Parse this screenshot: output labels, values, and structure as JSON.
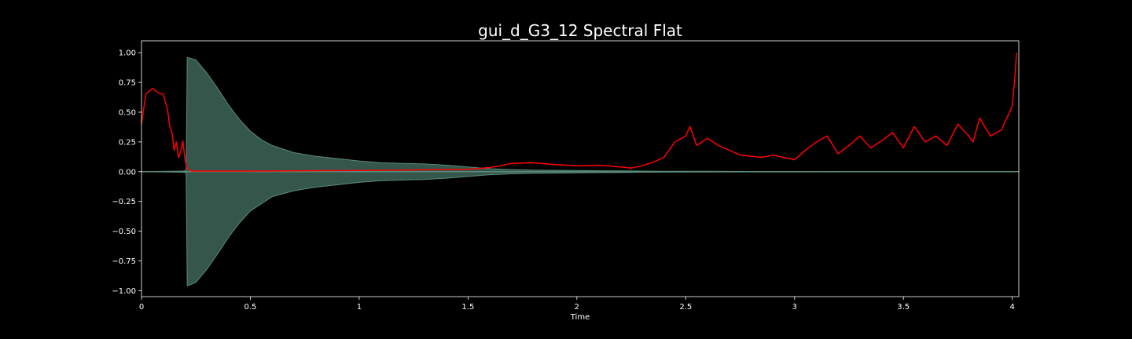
{
  "chart_data": {
    "type": "line",
    "title": "gui_d_G3_12 Spectral Flat",
    "xlabel": "Time",
    "ylabel": "",
    "xlim": [
      0,
      4.03
    ],
    "ylim": [
      -1.05,
      1.1
    ],
    "x_ticks": [
      0,
      0.5,
      1,
      1.5,
      2,
      2.5,
      3,
      3.5,
      4
    ],
    "x_tick_labels": [
      "0",
      "0.5",
      "1",
      "1.5",
      "2",
      "2.5",
      "3",
      "3.5",
      "4"
    ],
    "y_ticks": [
      1.0,
      0.75,
      0.5,
      0.25,
      0.0,
      -0.25,
      -0.5,
      -0.75,
      -1.0
    ],
    "y_tick_labels": [
      "1.00",
      "0.75",
      "0.50",
      "0.25",
      "0.00",
      "−0.25",
      "−0.50",
      "−0.75",
      "−1.00"
    ],
    "grid": false,
    "series": [
      {
        "kind": "waveform-envelope",
        "color": "#5a8a7a",
        "fill_color": "#35564b",
        "x": [
          0,
          0.19,
          0.205,
          0.21,
          0.25,
          0.3,
          0.35,
          0.4,
          0.45,
          0.5,
          0.55,
          0.6,
          0.7,
          0.8,
          0.9,
          1.0,
          1.1,
          1.2,
          1.3,
          1.4,
          1.5,
          1.6,
          1.7,
          1.8,
          1.9,
          2.0,
          2.1,
          2.2,
          2.3,
          2.4,
          2.6,
          2.8,
          3.0,
          3.5,
          4.03
        ],
        "upper": [
          0.0,
          0.005,
          0.01,
          0.96,
          0.94,
          0.83,
          0.7,
          0.56,
          0.44,
          0.34,
          0.27,
          0.22,
          0.16,
          0.13,
          0.11,
          0.09,
          0.075,
          0.07,
          0.065,
          0.055,
          0.04,
          0.025,
          0.018,
          0.014,
          0.012,
          0.01,
          0.008,
          0.007,
          0.005,
          0.004,
          0.003,
          0.002,
          0.002,
          0.001,
          0.0
        ],
        "lower": [
          0.0,
          -0.005,
          -0.01,
          -0.96,
          -0.93,
          -0.82,
          -0.69,
          -0.55,
          -0.43,
          -0.33,
          -0.27,
          -0.21,
          -0.16,
          -0.13,
          -0.11,
          -0.09,
          -0.075,
          -0.07,
          -0.065,
          -0.055,
          -0.04,
          -0.025,
          -0.018,
          -0.014,
          -0.012,
          -0.01,
          -0.008,
          -0.007,
          -0.005,
          -0.004,
          -0.003,
          -0.002,
          -0.002,
          -0.001,
          0.0
        ]
      },
      {
        "kind": "spectral-flatness",
        "color": "#ff0000",
        "x": [
          0,
          0.02,
          0.05,
          0.08,
          0.1,
          0.12,
          0.13,
          0.14,
          0.15,
          0.16,
          0.17,
          0.18,
          0.19,
          0.2,
          0.21,
          0.23,
          0.3,
          0.5,
          1.0,
          1.5,
          1.6,
          1.65,
          1.7,
          1.8,
          1.9,
          2.0,
          2.1,
          2.2,
          2.25,
          2.3,
          2.35,
          2.4,
          2.45,
          2.5,
          2.52,
          2.55,
          2.6,
          2.65,
          2.7,
          2.75,
          2.8,
          2.85,
          2.9,
          2.95,
          3.0,
          3.05,
          3.1,
          3.15,
          3.2,
          3.25,
          3.3,
          3.35,
          3.4,
          3.45,
          3.5,
          3.55,
          3.6,
          3.65,
          3.7,
          3.75,
          3.8,
          3.82,
          3.85,
          3.9,
          3.95,
          4.0,
          4.01,
          4.02
        ],
        "y": [
          0.4,
          0.65,
          0.7,
          0.66,
          0.65,
          0.52,
          0.38,
          0.33,
          0.18,
          0.25,
          0.12,
          0.17,
          0.26,
          0.1,
          0.03,
          0.005,
          0.005,
          0.005,
          0.01,
          0.02,
          0.035,
          0.05,
          0.07,
          0.075,
          0.06,
          0.05,
          0.055,
          0.04,
          0.03,
          0.05,
          0.08,
          0.12,
          0.25,
          0.3,
          0.38,
          0.22,
          0.28,
          0.22,
          0.18,
          0.14,
          0.13,
          0.12,
          0.14,
          0.12,
          0.1,
          0.18,
          0.25,
          0.3,
          0.15,
          0.22,
          0.3,
          0.2,
          0.26,
          0.33,
          0.2,
          0.38,
          0.25,
          0.3,
          0.22,
          0.4,
          0.3,
          0.25,
          0.45,
          0.3,
          0.35,
          0.55,
          0.75,
          1.0
        ]
      }
    ]
  }
}
